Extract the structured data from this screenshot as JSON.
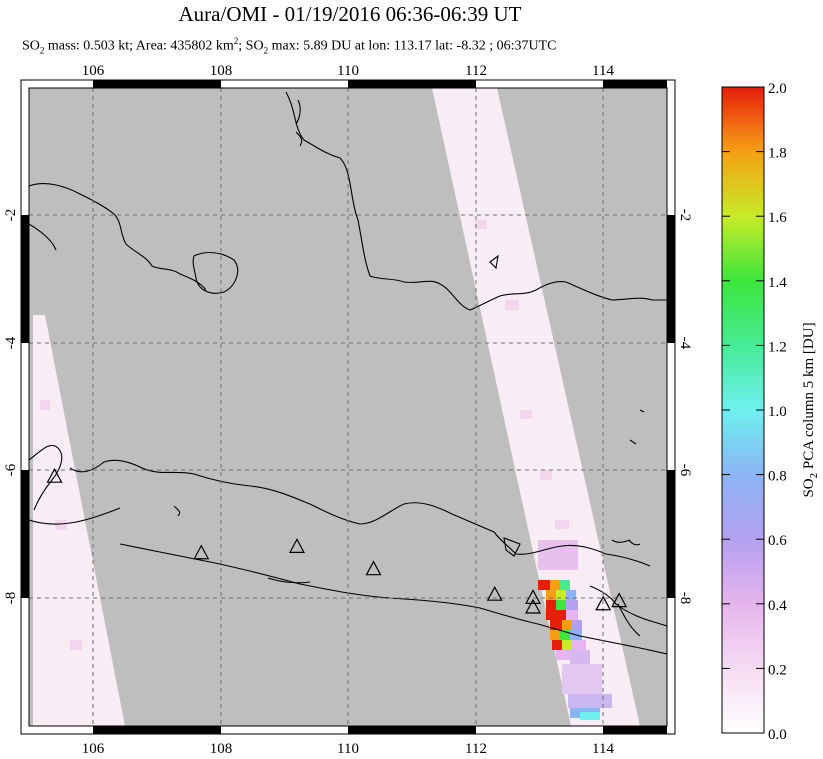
{
  "header": {
    "title": "Aura/OMI - 01/19/2016 06:36-06:39 UT",
    "stats_prefix": "SO",
    "stats_part1": " mass: 0.503 kt; Area: 435802 km",
    "stats_part2": "; SO",
    "stats_part3": " max: 5.89 DU at lon: 113.17 lat: -8.32 ; 06:37UTC",
    "sub_2": "2",
    "sup_2": "2"
  },
  "map": {
    "lon_labels": [
      "106",
      "108",
      "110",
      "112",
      "114"
    ],
    "lat_labels": [
      "-2",
      "-4",
      "-6",
      "-8"
    ],
    "lon_range": [
      105,
      115
    ],
    "lat_range": [
      -10,
      0
    ],
    "land_color": "#bebebe",
    "grid": "dashed"
  },
  "colorbar": {
    "ticks": [
      "0.0",
      "0.2",
      "0.4",
      "0.6",
      "0.8",
      "1.0",
      "1.2",
      "1.4",
      "1.6",
      "1.8",
      "2.0"
    ],
    "label": "SO2 PCA column 5 km [DU]",
    "label_prefix": "SO",
    "label_sub": "2",
    "label_rest": " PCA column 5 km [DU]",
    "range": [
      0,
      2
    ]
  },
  "volcanoes": [
    {
      "lon": 105.4,
      "lat": -6.1
    },
    {
      "lon": 107.7,
      "lat": -7.3
    },
    {
      "lon": 109.2,
      "lat": -7.2
    },
    {
      "lon": 110.4,
      "lat": -7.55
    },
    {
      "lon": 112.3,
      "lat": -7.95
    },
    {
      "lon": 112.9,
      "lat": -8.0
    },
    {
      "lon": 112.9,
      "lat": -8.15
    },
    {
      "lon": 114.0,
      "lat": -8.1
    },
    {
      "lon": 114.25,
      "lat": -8.05
    }
  ]
}
